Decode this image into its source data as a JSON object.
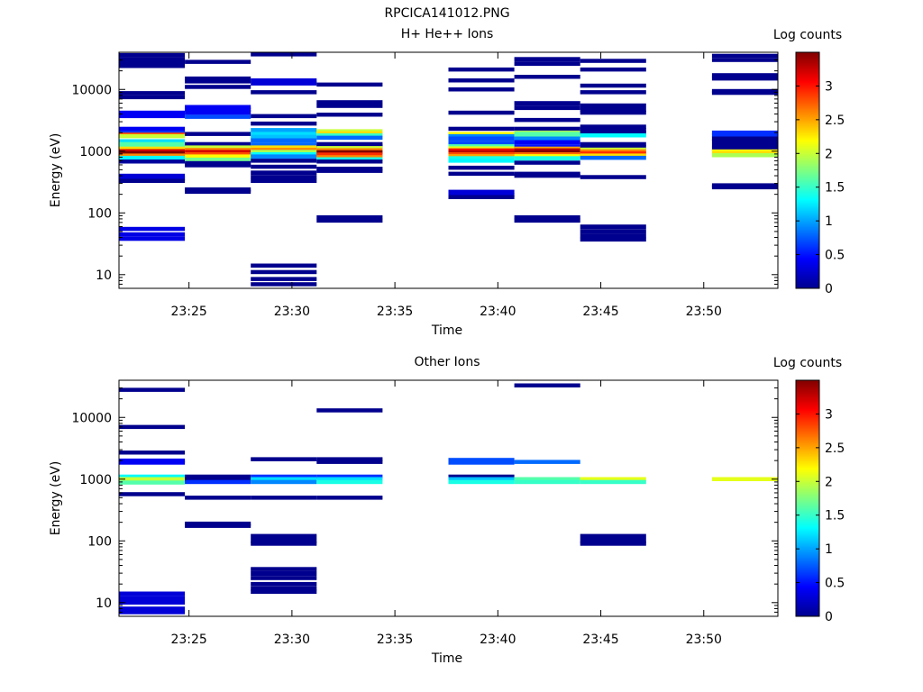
{
  "figure_title": "RPCICA141012.PNG",
  "chart_data": [
    {
      "type": "heatmap",
      "title": "H+ He++ Ions",
      "xlabel": "Time",
      "ylabel": "Energy (eV)",
      "colorbar_label": "Log counts",
      "colorbar_ticks": [
        "0",
        "0.5",
        "1",
        "1.5",
        "2",
        "2.5",
        "3"
      ],
      "clim": [
        0,
        3.5
      ],
      "yscale": "log",
      "ylim": [
        6,
        40000
      ],
      "xlim_minutes": [
        "23:21.6",
        "23:53.6"
      ],
      "xticks": [
        "23:25",
        "23:30",
        "23:35",
        "23:40",
        "23:45",
        "23:50"
      ],
      "yticks": [
        "10",
        "100",
        "1000",
        "10000"
      ],
      "columns": [
        {
          "t0": "23:21.6",
          "t1": "23:24.8",
          "bins": [
            [
              36000,
              0.05
            ],
            [
              31000,
              0.05
            ],
            [
              28000,
              0.05
            ],
            [
              24000,
              0.05
            ],
            [
              8700,
              0.05
            ],
            [
              7500,
              0.05
            ],
            [
              4200,
              0.4
            ],
            [
              3700,
              0.4
            ],
            [
              2300,
              0.4
            ],
            [
              2000,
              0.6
            ],
            [
              1850,
              2.8
            ],
            [
              1750,
              2.0
            ],
            [
              1450,
              1.2
            ],
            [
              1300,
              1.6
            ],
            [
              1200,
              1.6
            ],
            [
              1100,
              2.3
            ],
            [
              1000,
              3.2
            ],
            [
              930,
              3.5
            ],
            [
              850,
              2.6
            ],
            [
              780,
              1.3
            ],
            [
              680,
              0.1
            ],
            [
              400,
              0.3
            ],
            [
              360,
              0.3
            ],
            [
              330,
              0.05
            ],
            [
              55,
              0.35
            ],
            [
              45,
              0.35
            ],
            [
              38,
              0.35
            ]
          ]
        },
        {
          "t0": "23:24.8",
          "t1": "23:28.0",
          "bins": [
            [
              28000,
              0.05
            ],
            [
              15000,
              0.05
            ],
            [
              13500,
              0.05
            ],
            [
              11000,
              0.05
            ],
            [
              5200,
              0.4
            ],
            [
              4700,
              0.4
            ],
            [
              4300,
              0.4
            ],
            [
              3600,
              0.7
            ],
            [
              1900,
              0.05
            ],
            [
              1300,
              0.05
            ],
            [
              1150,
              2.0
            ],
            [
              1050,
              2.6
            ],
            [
              970,
              3.2
            ],
            [
              890,
              2.8
            ],
            [
              820,
              2.2
            ],
            [
              730,
              1.7
            ],
            [
              640,
              0.05
            ],
            [
              590,
              0.05
            ],
            [
              240,
              0.05
            ],
            [
              220,
              0.05
            ]
          ]
        },
        {
          "t0": "23:28.0",
          "t1": "23:31.2",
          "bins": [
            [
              37000,
              0.05
            ],
            [
              14000,
              0.3
            ],
            [
              12500,
              0.3
            ],
            [
              9000,
              0.05
            ],
            [
              3700,
              0.05
            ],
            [
              2800,
              0.05
            ],
            [
              2200,
              1.0
            ],
            [
              1900,
              1.2
            ],
            [
              1700,
              1.1
            ],
            [
              1500,
              0.8
            ],
            [
              1250,
              0.8
            ],
            [
              1150,
              2.3
            ],
            [
              1050,
              2.6
            ],
            [
              970,
              1.9
            ],
            [
              890,
              1.3
            ],
            [
              820,
              0.9
            ],
            [
              700,
              0.05
            ],
            [
              560,
              0.05
            ],
            [
              450,
              0.05
            ],
            [
              380,
              0.05
            ],
            [
              330,
              0.05
            ],
            [
              14,
              0.05
            ],
            [
              11,
              0.05
            ],
            [
              8.5,
              0.05
            ],
            [
              7,
              0.05
            ]
          ]
        },
        {
          "t0": "23:31.2",
          "t1": "23:34.4",
          "bins": [
            [
              12000,
              0.05
            ],
            [
              6200,
              0.05
            ],
            [
              5400,
              0.05
            ],
            [
              3900,
              0.05
            ],
            [
              2100,
              2.0
            ],
            [
              1950,
              2.3
            ],
            [
              1800,
              1.5
            ],
            [
              1650,
              0.8
            ],
            [
              1300,
              0.05
            ],
            [
              1200,
              0.05
            ],
            [
              1120,
              2.0
            ],
            [
              1040,
              2.6
            ],
            [
              960,
              3.5
            ],
            [
              880,
              2.9
            ],
            [
              800,
              2.6
            ],
            [
              740,
              1.4
            ],
            [
              680,
              0.05
            ],
            [
              520,
              0.05
            ],
            [
              480,
              0.05
            ],
            [
              85,
              0.05
            ],
            [
              75,
              0.05
            ]
          ]
        },
        {
          "t0": "23:37.6",
          "t1": "23:40.8",
          "bins": [
            [
              21000,
              0.05
            ],
            [
              14000,
              0.05
            ],
            [
              10000,
              0.05
            ],
            [
              4200,
              0.05
            ],
            [
              2300,
              0.05
            ],
            [
              1900,
              2.2
            ],
            [
              1750,
              0.9
            ],
            [
              1600,
              0.7
            ],
            [
              1350,
              0.7
            ],
            [
              1200,
              1.6
            ],
            [
              1110,
              2.1
            ],
            [
              1030,
              3.0
            ],
            [
              960,
              3.3
            ],
            [
              890,
              2.8
            ],
            [
              830,
              2.5
            ],
            [
              770,
              1.4
            ],
            [
              700,
              1.3
            ],
            [
              540,
              0.05
            ],
            [
              430,
              0.05
            ],
            [
              220,
              0.3
            ],
            [
              195,
              0.3
            ],
            [
              180,
              0.05
            ]
          ]
        },
        {
          "t0": "23:40.8",
          "t1": "23:44.0",
          "bins": [
            [
              31000,
              0.05
            ],
            [
              26000,
              0.05
            ],
            [
              16000,
              0.05
            ],
            [
              6000,
              0.05
            ],
            [
              5000,
              0.05
            ],
            [
              3200,
              0.05
            ],
            [
              2300,
              0.05
            ],
            [
              2000,
              1.9
            ],
            [
              1900,
              1.6
            ],
            [
              1750,
              1.6
            ],
            [
              1600,
              0.9
            ],
            [
              1400,
              0.4
            ],
            [
              1200,
              0.5
            ],
            [
              1100,
              2.5
            ],
            [
              1030,
              3.3
            ],
            [
              960,
              3.5
            ],
            [
              890,
              2.7
            ],
            [
              830,
              2.2
            ],
            [
              770,
              1.4
            ],
            [
              650,
              0.05
            ],
            [
              430,
              0.05
            ],
            [
              400,
              0.05
            ],
            [
              85,
              0.05
            ],
            [
              75,
              0.05
            ]
          ]
        },
        {
          "t0": "23:44.0",
          "t1": "23:47.2",
          "bins": [
            [
              29000,
              0.05
            ],
            [
              21000,
              0.05
            ],
            [
              11500,
              0.05
            ],
            [
              9000,
              0.05
            ],
            [
              5500,
              0.05
            ],
            [
              4700,
              0.05
            ],
            [
              4200,
              0.05
            ],
            [
              2500,
              0.05
            ],
            [
              2200,
              0.05
            ],
            [
              2000,
              0.05
            ],
            [
              1800,
              1.3
            ],
            [
              1300,
              0.05
            ],
            [
              1150,
              0.05
            ],
            [
              1060,
              2.0
            ],
            [
              990,
              2.6
            ],
            [
              920,
              2.9
            ],
            [
              850,
              2.3
            ],
            [
              780,
              0.8
            ],
            [
              380,
              0.05
            ],
            [
              60,
              0.05
            ],
            [
              50,
              0.05
            ],
            [
              42,
              0.05
            ],
            [
              37,
              0.05
            ]
          ]
        },
        {
          "t0": "23:50.4",
          "t1": "23:53.6",
          "bins": [
            [
              35000,
              0.05
            ],
            [
              30000,
              0.05
            ],
            [
              17000,
              0.05
            ],
            [
              15000,
              0.05
            ],
            [
              9400,
              0.05
            ],
            [
              8800,
              0.05
            ],
            [
              2000,
              0.6
            ],
            [
              1800,
              0.6
            ],
            [
              1600,
              0.05
            ],
            [
              1450,
              0.05
            ],
            [
              1250,
              0.05
            ],
            [
              1100,
              0.05
            ],
            [
              990,
              2.2
            ],
            [
              930,
              2.3
            ],
            [
              860,
              1.9
            ],
            [
              280,
              0.05
            ],
            [
              260,
              0.05
            ]
          ]
        }
      ]
    },
    {
      "type": "heatmap",
      "title": "Other Ions",
      "xlabel": "Time",
      "ylabel": "Energy (eV)",
      "colorbar_label": "Log counts",
      "colorbar_ticks": [
        "0",
        "0.5",
        "1",
        "1.5",
        "2",
        "2.5",
        "3"
      ],
      "clim": [
        0,
        3.5
      ],
      "yscale": "log",
      "ylim": [
        6,
        40000
      ],
      "xlim_minutes": [
        "23:21.6",
        "23:53.6"
      ],
      "xticks": [
        "23:25",
        "23:30",
        "23:35",
        "23:40",
        "23:45",
        "23:50"
      ],
      "yticks": [
        "10",
        "100",
        "1000",
        "10000"
      ],
      "columns": [
        {
          "t0": "23:21.6",
          "t1": "23:24.8",
          "bins": [
            [
              28000,
              0.05
            ],
            [
              7000,
              0.05
            ],
            [
              2700,
              0.05
            ],
            [
              2000,
              0.4
            ],
            [
              1850,
              0.4
            ],
            [
              1100,
              1.3
            ],
            [
              1000,
              2.0
            ],
            [
              880,
              1.6
            ],
            [
              570,
              0.05
            ],
            [
              14,
              0.3
            ],
            [
              12,
              0.3
            ],
            [
              10,
              0.3
            ],
            [
              8,
              0.3
            ],
            [
              7,
              0.3
            ]
          ]
        },
        {
          "t0": "23:24.8",
          "t1": "23:28.0",
          "bins": [
            [
              1100,
              0.05
            ],
            [
              1000,
              0.05
            ],
            [
              900,
              0.6
            ],
            [
              500,
              0.05
            ],
            [
              190,
              0.05
            ],
            [
              175,
              0.05
            ]
          ]
        },
        {
          "t0": "23:28.0",
          "t1": "23:31.2",
          "bins": [
            [
              2100,
              0.05
            ],
            [
              1100,
              0.6
            ],
            [
              1000,
              1.2
            ],
            [
              900,
              0.9
            ],
            [
              500,
              0.05
            ],
            [
              120,
              0.05
            ],
            [
              100,
              0.05
            ],
            [
              90,
              0.05
            ],
            [
              35,
              0.05
            ],
            [
              30,
              0.05
            ],
            [
              25,
              0.05
            ],
            [
              20,
              0.05
            ],
            [
              17,
              0.05
            ],
            [
              15,
              0.05
            ]
          ]
        },
        {
          "t0": "23:31.2",
          "t1": "23:34.4",
          "bins": [
            [
              13000,
              0.05
            ],
            [
              2100,
              0.05
            ],
            [
              1900,
              0.05
            ],
            [
              1100,
              0.6
            ],
            [
              1000,
              1.2
            ],
            [
              900,
              1.4
            ],
            [
              500,
              0.05
            ]
          ]
        },
        {
          "t0": "23:37.6",
          "t1": "23:40.8",
          "bins": [
            [
              2050,
              0.7
            ],
            [
              1850,
              0.7
            ],
            [
              1100,
              0.05
            ],
            [
              1000,
              1.1
            ],
            [
              900,
              1.4
            ]
          ]
        },
        {
          "t0": "23:40.8",
          "t1": "23:44.0",
          "bins": [
            [
              33000,
              0.05
            ],
            [
              1900,
              0.8
            ],
            [
              1000,
              1.6
            ],
            [
              900,
              1.5
            ]
          ]
        },
        {
          "t0": "23:44.0",
          "t1": "23:47.2",
          "bins": [
            [
              1000,
              2.1
            ],
            [
              900,
              1.5
            ],
            [
              120,
              0.05
            ],
            [
              100,
              0.05
            ],
            [
              90,
              0.05
            ]
          ]
        },
        {
          "t0": "23:50.4",
          "t1": "23:53.6",
          "bins": [
            [
              1000,
              2.1
            ]
          ]
        }
      ]
    }
  ]
}
